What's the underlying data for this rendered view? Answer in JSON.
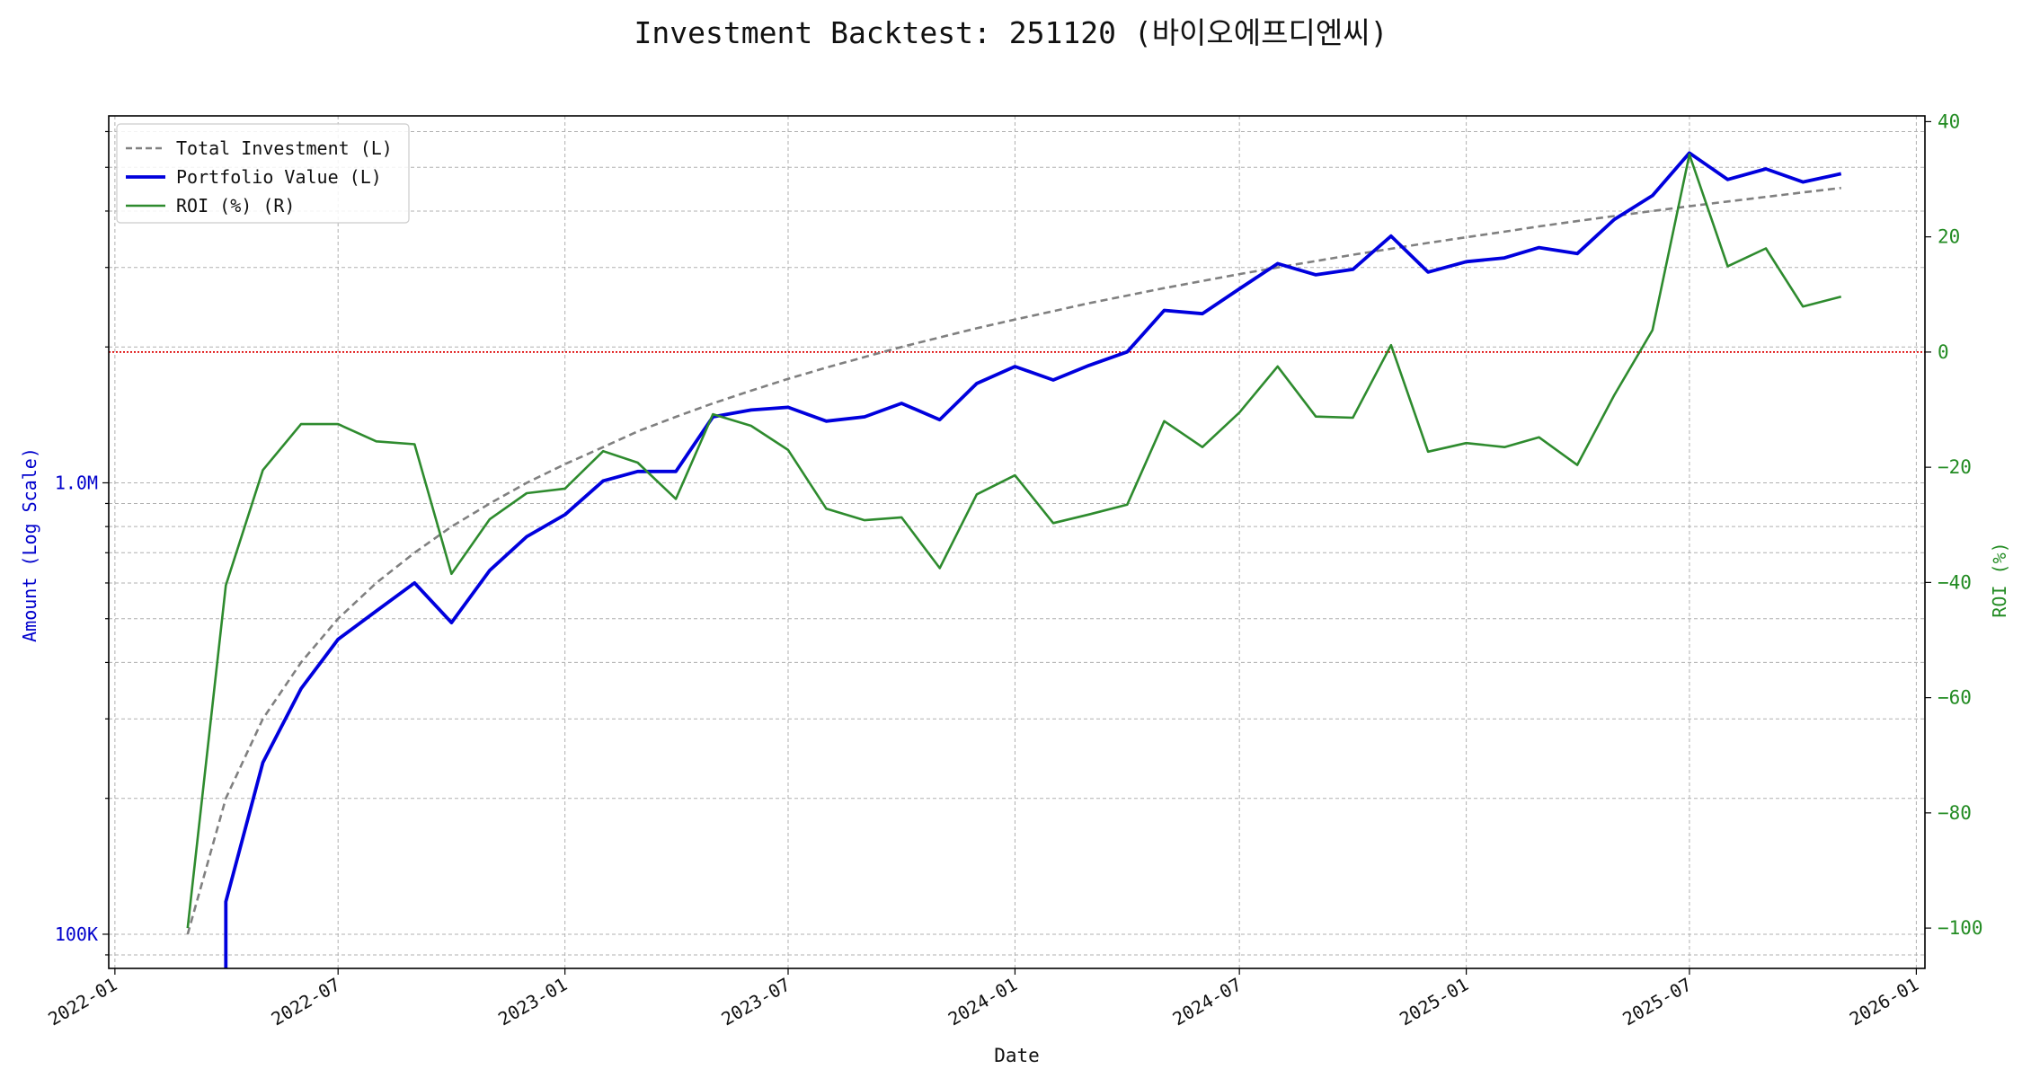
{
  "chart_data": {
    "type": "line",
    "title": "Investment Backtest: 251120 (바이오에프디엔씨)",
    "xlabel": "Date",
    "ylabel_left": "Amount (Log Scale)",
    "ylabel_right": "ROI (%)",
    "left_scale": "log",
    "left_ylim": [
      84000,
      6500000
    ],
    "left_ticks": [
      {
        "value": 100000,
        "label": "100K"
      },
      {
        "value": 1000000,
        "label": "1.0M"
      }
    ],
    "right_ylim": [
      -107,
      41
    ],
    "right_ticks": [
      40,
      20,
      0,
      -20,
      -40,
      -60,
      -80,
      -100
    ],
    "xlim": [
      "2021-12-27",
      "2026-01-08"
    ],
    "x_ticks": [
      "2022-01",
      "2022-07",
      "2023-01",
      "2023-07",
      "2024-01",
      "2024-07",
      "2025-01",
      "2025-07",
      "2026-01"
    ],
    "grid": true,
    "legend_position": "top-left",
    "zero_line": {
      "value": 0,
      "axis": "right",
      "color": "#dd0000",
      "style": "dotted"
    },
    "colors": {
      "left_axis": "#0000cc",
      "right_axis": "#228b22",
      "total_investment": "#808080",
      "portfolio": "#0000dd",
      "roi": "#2e8b2e"
    },
    "x": [
      "2022-03",
      "2022-04",
      "2022-05",
      "2022-06",
      "2022-07",
      "2022-08",
      "2022-09",
      "2022-10",
      "2022-11",
      "2022-12",
      "2023-01",
      "2023-02",
      "2023-03",
      "2023-04",
      "2023-05",
      "2023-06",
      "2023-07",
      "2023-08",
      "2023-09",
      "2023-10",
      "2023-11",
      "2023-12",
      "2024-01",
      "2024-02",
      "2024-03",
      "2024-04",
      "2024-05",
      "2024-06",
      "2024-07",
      "2024-08",
      "2024-09",
      "2024-10",
      "2024-11",
      "2024-12",
      "2025-01",
      "2025-02",
      "2025-03",
      "2025-04",
      "2025-05",
      "2025-06",
      "2025-07",
      "2025-08",
      "2025-09",
      "2025-10",
      "2025-11"
    ],
    "series": [
      {
        "name": "Total Investment (L)",
        "axis": "left",
        "style": "dashed",
        "values": [
          100000,
          200000,
          300000,
          400000,
          500000,
          600000,
          700000,
          800000,
          900000,
          1000000,
          1100000,
          1200000,
          1300000,
          1400000,
          1500000,
          1600000,
          1700000,
          1800000,
          1900000,
          2000000,
          2100000,
          2200000,
          2300000,
          2400000,
          2500000,
          2600000,
          2700000,
          2800000,
          2900000,
          3000000,
          3100000,
          3200000,
          3300000,
          3400000,
          3500000,
          3600000,
          3700000,
          3800000,
          3900000,
          4000000,
          4100000,
          4200000,
          4300000,
          4400000,
          4500000
        ]
      },
      {
        "name": "Portfolio Value (L)",
        "axis": "left",
        "style": "solid",
        "values": [
          null,
          118000,
          240000,
          350000,
          450000,
          520000,
          600000,
          490000,
          640000,
          760000,
          850000,
          1010000,
          1060000,
          1060000,
          1400000,
          1450000,
          1470000,
          1370000,
          1400000,
          1500000,
          1380000,
          1660000,
          1810000,
          1690000,
          1820000,
          1950000,
          2410000,
          2370000,
          2690000,
          3060000,
          2890000,
          2970000,
          3520000,
          2930000,
          3090000,
          3150000,
          3320000,
          3220000,
          3830000,
          4330000,
          5380000,
          4700000,
          4960000,
          4640000,
          4840000
        ]
      },
      {
        "name": "ROI (%) (R)",
        "axis": "right",
        "style": "solid",
        "values": [
          -100,
          -40.5,
          -20.5,
          -12.5,
          -12.5,
          -15.5,
          -16,
          -38.5,
          -29,
          -24.5,
          -23.7,
          -17.2,
          -19.2,
          -25.5,
          -10.8,
          -12.8,
          -17,
          -27.2,
          -29.2,
          -28.7,
          -37.5,
          -24.7,
          -21.4,
          -29.7,
          -28.2,
          -26.5,
          -12,
          -16.5,
          -10.5,
          -2.5,
          -11.2,
          -11.4,
          1.2,
          -17.3,
          -15.8,
          -16.5,
          -14.8,
          -19.6,
          -7.5,
          3.8,
          34.3,
          14.9,
          18,
          7.9,
          9.6
        ]
      }
    ]
  }
}
